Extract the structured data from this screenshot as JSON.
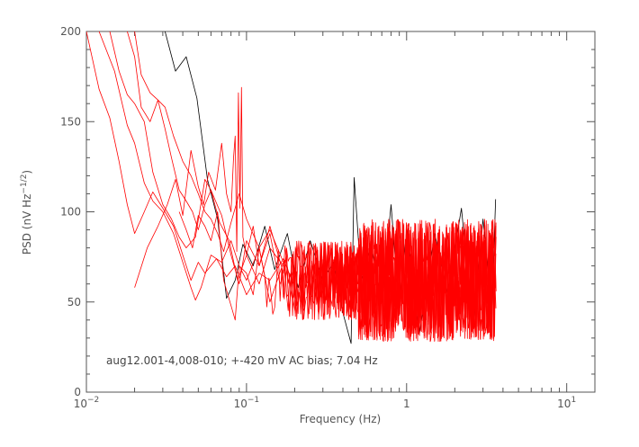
{
  "chart_data": {
    "type": "line",
    "xlabel": "Frequency (Hz)",
    "ylabel": "PSD (nV Hz",
    "ylabel_exponent": "−1/2",
    "ylabel_close": ")",
    "x_scale": "log",
    "xlim": [
      0.01,
      15
    ],
    "ylim": [
      0,
      200
    ],
    "x_ticks": [
      {
        "value": 0.01,
        "base": "10",
        "exp": "−2"
      },
      {
        "value": 0.1,
        "base": "10",
        "exp": "−1"
      },
      {
        "value": 1,
        "base": "1",
        "exp": ""
      },
      {
        "value": 10,
        "base": "10",
        "exp": "1"
      }
    ],
    "y_ticks": [
      0,
      50,
      100,
      150,
      200
    ],
    "y_tick_labels": [
      "0",
      "50",
      "100",
      "150",
      "200"
    ],
    "grid": false,
    "annotation": "aug12.001-4,008-010; +-420 mV AC bias; 7.04 Hz",
    "colors": {
      "black_series": "#000000",
      "red_series": "#ff0000"
    },
    "series": [
      {
        "color": "#000000",
        "points": [
          [
            0.031,
            200
          ],
          [
            0.036,
            178
          ],
          [
            0.042,
            186
          ],
          [
            0.049,
            163
          ],
          [
            0.057,
            118
          ],
          [
            0.066,
            96
          ],
          [
            0.075,
            52
          ],
          [
            0.085,
            62
          ],
          [
            0.095,
            82
          ],
          [
            0.11,
            70
          ],
          [
            0.13,
            92
          ],
          [
            0.15,
            68
          ],
          [
            0.18,
            88
          ],
          [
            0.21,
            58
          ],
          [
            0.25,
            84
          ],
          [
            0.3,
            62
          ],
          [
            0.35,
            72
          ],
          [
            0.4,
            44
          ],
          [
            0.45,
            27
          ],
          [
            0.47,
            119
          ],
          [
            0.52,
            62
          ],
          [
            0.6,
            82
          ],
          [
            0.7,
            50
          ],
          [
            0.8,
            104
          ],
          [
            0.9,
            46
          ],
          [
            1.0,
            90
          ],
          [
            1.2,
            32
          ],
          [
            1.5,
            88
          ],
          [
            1.8,
            54
          ],
          [
            2.2,
            102
          ],
          [
            2.6,
            36
          ],
          [
            3.0,
            96
          ],
          [
            3.4,
            44
          ],
          [
            3.6,
            107
          ]
        ]
      },
      {
        "color": "#ff0000",
        "points": [
          [
            0.01,
            200
          ],
          [
            0.012,
            168
          ],
          [
            0.014,
            152
          ],
          [
            0.016,
            128
          ],
          [
            0.018,
            104
          ],
          [
            0.02,
            88
          ],
          [
            0.023,
            100
          ],
          [
            0.026,
            111
          ],
          [
            0.03,
            102
          ],
          [
            0.035,
            92
          ],
          [
            0.04,
            76
          ],
          [
            0.045,
            62
          ],
          [
            0.05,
            72
          ],
          [
            0.055,
            66
          ],
          [
            0.065,
            74
          ],
          [
            0.075,
            64
          ],
          [
            0.085,
            70
          ],
          [
            0.1,
            54
          ],
          [
            0.12,
            66
          ],
          [
            0.14,
            62
          ],
          [
            0.17,
            74
          ],
          [
            0.2,
            58
          ]
        ]
      },
      {
        "color": "#ff0000",
        "points": [
          [
            0.012,
            200
          ],
          [
            0.015,
            178
          ],
          [
            0.018,
            148
          ],
          [
            0.02,
            138
          ],
          [
            0.023,
            116
          ],
          [
            0.026,
            106
          ],
          [
            0.03,
            100
          ],
          [
            0.035,
            88
          ],
          [
            0.04,
            72
          ],
          [
            0.045,
            58
          ],
          [
            0.048,
            51
          ],
          [
            0.052,
            58
          ],
          [
            0.06,
            76
          ],
          [
            0.07,
            72
          ],
          [
            0.08,
            84
          ],
          [
            0.09,
            70
          ],
          [
            0.1,
            62
          ],
          [
            0.12,
            80
          ],
          [
            0.14,
            50
          ],
          [
            0.17,
            72
          ]
        ]
      },
      {
        "color": "#ff0000",
        "points": [
          [
            0.014,
            200
          ],
          [
            0.016,
            178
          ],
          [
            0.018,
            165
          ],
          [
            0.02,
            160
          ],
          [
            0.023,
            150
          ],
          [
            0.026,
            122
          ],
          [
            0.03,
            104
          ],
          [
            0.034,
            96
          ],
          [
            0.038,
            86
          ],
          [
            0.042,
            80
          ],
          [
            0.048,
            86
          ],
          [
            0.055,
            118
          ],
          [
            0.06,
            112
          ],
          [
            0.07,
            98
          ],
          [
            0.08,
            76
          ],
          [
            0.09,
            60
          ],
          [
            0.1,
            84
          ],
          [
            0.12,
            70
          ],
          [
            0.14,
            92
          ],
          [
            0.17,
            66
          ]
        ]
      },
      {
        "color": "#ff0000",
        "points": [
          [
            0.018,
            200
          ],
          [
            0.02,
            186
          ],
          [
            0.022,
            158
          ],
          [
            0.025,
            150
          ],
          [
            0.028,
            162
          ],
          [
            0.031,
            146
          ],
          [
            0.034,
            130
          ],
          [
            0.038,
            112
          ],
          [
            0.042,
            106
          ],
          [
            0.046,
            100
          ],
          [
            0.05,
            90
          ],
          [
            0.055,
            104
          ],
          [
            0.06,
            112
          ],
          [
            0.068,
            94
          ],
          [
            0.078,
            84
          ],
          [
            0.088,
            62
          ],
          [
            0.1,
            76
          ],
          [
            0.12,
            60
          ],
          [
            0.14,
            80
          ],
          [
            0.17,
            70
          ]
        ]
      },
      {
        "color": "#ff0000",
        "points": [
          [
            0.02,
            200
          ],
          [
            0.022,
            176
          ],
          [
            0.025,
            166
          ],
          [
            0.028,
            162
          ],
          [
            0.031,
            158
          ],
          [
            0.035,
            142
          ],
          [
            0.04,
            128
          ],
          [
            0.045,
            120
          ],
          [
            0.05,
            110
          ],
          [
            0.055,
            100
          ],
          [
            0.06,
            96
          ],
          [
            0.066,
            88
          ],
          [
            0.072,
            78
          ],
          [
            0.08,
            94
          ],
          [
            0.09,
            110
          ],
          [
            0.1,
            96
          ],
          [
            0.12,
            80
          ],
          [
            0.14,
            90
          ],
          [
            0.17,
            72
          ]
        ]
      },
      {
        "color": "#ff0000",
        "points": [
          [
            0.02,
            58
          ],
          [
            0.024,
            80
          ],
          [
            0.028,
            92
          ],
          [
            0.032,
            104
          ],
          [
            0.036,
            118
          ],
          [
            0.04,
            98
          ],
          [
            0.045,
            134
          ],
          [
            0.05,
            114
          ],
          [
            0.054,
            104
          ],
          [
            0.058,
            122
          ],
          [
            0.064,
            112
          ],
          [
            0.07,
            138
          ],
          [
            0.075,
            110
          ],
          [
            0.08,
            100
          ],
          [
            0.083,
            130
          ],
          [
            0.085,
            142
          ],
          [
            0.087,
            78
          ],
          [
            0.089,
            166
          ],
          [
            0.091,
            102
          ],
          [
            0.093,
            169
          ],
          [
            0.095,
            86
          ],
          [
            0.1,
            76
          ],
          [
            0.11,
            92
          ],
          [
            0.12,
            70
          ],
          [
            0.14,
            88
          ],
          [
            0.16,
            62
          ]
        ]
      },
      {
        "color": "#ff0000",
        "points": [
          [
            0.038,
            100
          ],
          [
            0.042,
            90
          ],
          [
            0.046,
            80
          ],
          [
            0.05,
            98
          ],
          [
            0.055,
            92
          ],
          [
            0.06,
            84
          ],
          [
            0.066,
            100
          ],
          [
            0.072,
            62
          ],
          [
            0.08,
            48
          ],
          [
            0.085,
            40
          ],
          [
            0.09,
            70
          ],
          [
            0.1,
            66
          ],
          [
            0.11,
            54
          ],
          [
            0.12,
            80
          ],
          [
            0.13,
            64
          ]
        ]
      }
    ]
  }
}
